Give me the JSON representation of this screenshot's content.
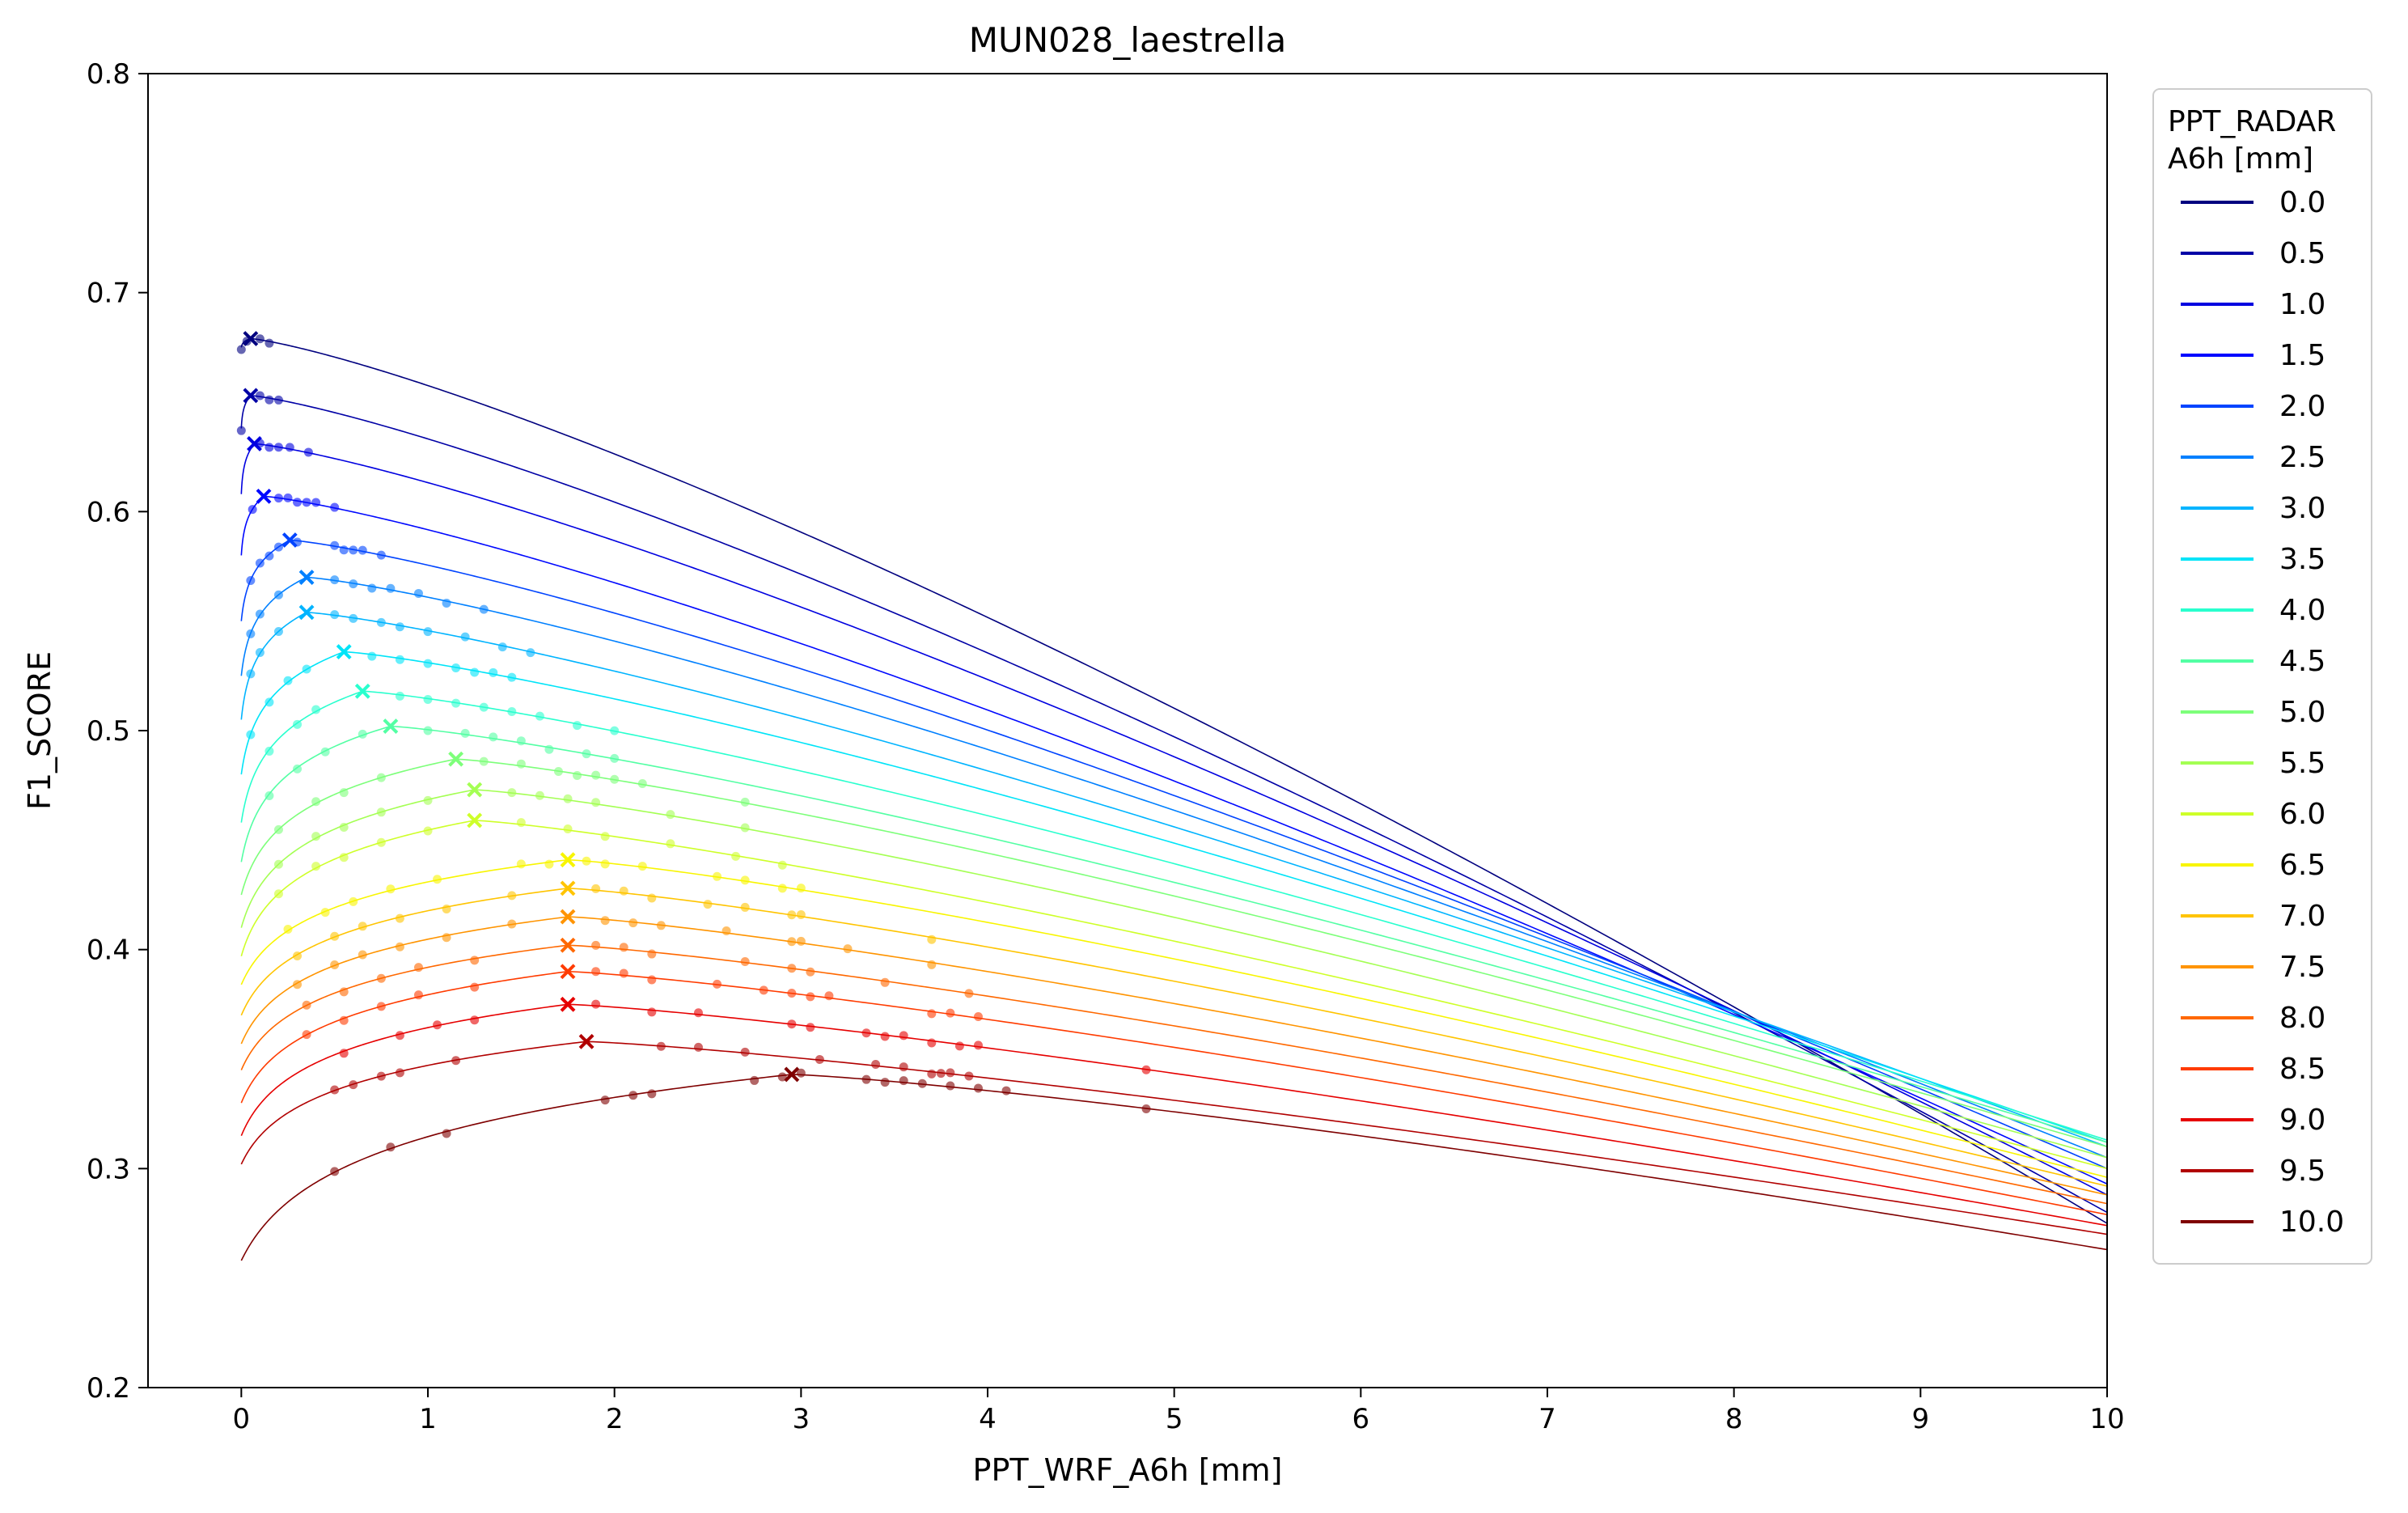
{
  "chart_data": {
    "type": "line",
    "title": "MUN028_laestrella",
    "xlabel": "PPT_WRF_A6h [mm]",
    "ylabel": "F1_SCORE",
    "xlim": [
      -0.5,
      10
    ],
    "ylim": [
      0.2,
      0.8
    ],
    "xticks": [
      0,
      1,
      2,
      3,
      4,
      5,
      6,
      7,
      8,
      9,
      10
    ],
    "yticks": [
      0.2,
      0.3,
      0.4,
      0.5,
      0.6,
      0.7,
      0.8
    ],
    "grid": false,
    "legend": {
      "title_line1": "PPT_RADAR",
      "title_line2": "A6h [mm]",
      "placement": "outside-right"
    },
    "series": [
      {
        "name": "0.0",
        "color": "#00007f",
        "start_y": 0.675,
        "peak_x": 0.05,
        "peak_y": 0.679,
        "end_y": 0.275,
        "marker_x": [
          0.0,
          0.03,
          0.1,
          0.15
        ]
      },
      {
        "name": "0.5",
        "color": "#0000a6",
        "start_y": 0.638,
        "peak_x": 0.05,
        "peak_y": 0.653,
        "end_y": 0.28,
        "marker_x": [
          0.0,
          0.1,
          0.15,
          0.2
        ]
      },
      {
        "name": "1.0",
        "color": "#0000e0",
        "start_y": 0.608,
        "peak_x": 0.07,
        "peak_y": 0.631,
        "end_y": 0.288,
        "marker_x": [
          0.1,
          0.15,
          0.2,
          0.26,
          0.36
        ]
      },
      {
        "name": "1.5",
        "color": "#0008ff",
        "start_y": 0.58,
        "peak_x": 0.12,
        "peak_y": 0.607,
        "end_y": 0.293,
        "marker_x": [
          0.06,
          0.2,
          0.25,
          0.3,
          0.35,
          0.4,
          0.5
        ]
      },
      {
        "name": "2.0",
        "color": "#0044ff",
        "start_y": 0.55,
        "peak_x": 0.26,
        "peak_y": 0.587,
        "end_y": 0.3,
        "marker_x": [
          0.05,
          0.1,
          0.15,
          0.2,
          0.3,
          0.5,
          0.55,
          0.6,
          0.65,
          0.75
        ]
      },
      {
        "name": "2.5",
        "color": "#0080ff",
        "start_y": 0.525,
        "peak_x": 0.35,
        "peak_y": 0.57,
        "end_y": 0.305,
        "marker_x": [
          0.05,
          0.1,
          0.2,
          0.5,
          0.6,
          0.7,
          0.8,
          0.95,
          1.1,
          1.3
        ]
      },
      {
        "name": "3.0",
        "color": "#00b4ff",
        "start_y": 0.505,
        "peak_x": 0.35,
        "peak_y": 0.554,
        "end_y": 0.31,
        "marker_x": [
          0.05,
          0.1,
          0.2,
          0.5,
          0.6,
          0.75,
          0.85,
          1.0,
          1.2,
          1.4,
          1.55
        ]
      },
      {
        "name": "3.5",
        "color": "#00e4f8",
        "start_y": 0.48,
        "peak_x": 0.55,
        "peak_y": 0.536,
        "end_y": 0.312,
        "marker_x": [
          0.05,
          0.15,
          0.25,
          0.35,
          0.7,
          0.85,
          1.0,
          1.15,
          1.25,
          1.35,
          1.45
        ]
      },
      {
        "name": "4.0",
        "color": "#29ffce",
        "start_y": 0.458,
        "peak_x": 0.65,
        "peak_y": 0.518,
        "end_y": 0.313,
        "marker_x": [
          0.15,
          0.3,
          0.4,
          0.85,
          1.0,
          1.15,
          1.3,
          1.45,
          1.6,
          1.8,
          2.0
        ]
      },
      {
        "name": "4.5",
        "color": "#53ffa4",
        "start_y": 0.44,
        "peak_x": 0.8,
        "peak_y": 0.502,
        "end_y": 0.312,
        "marker_x": [
          0.15,
          0.3,
          0.45,
          0.65,
          1.0,
          1.2,
          1.35,
          1.5,
          1.65,
          1.85,
          2.0
        ]
      },
      {
        "name": "5.0",
        "color": "#7dff7a",
        "start_y": 0.425,
        "peak_x": 1.15,
        "peak_y": 0.487,
        "end_y": 0.31,
        "marker_x": [
          0.2,
          0.4,
          0.55,
          0.75,
          1.3,
          1.5,
          1.7,
          1.8,
          1.9,
          2.0,
          2.15,
          2.7
        ]
      },
      {
        "name": "5.5",
        "color": "#a4ff53",
        "start_y": 0.41,
        "peak_x": 1.25,
        "peak_y": 0.473,
        "end_y": 0.305,
        "marker_x": [
          0.2,
          0.4,
          0.55,
          0.75,
          1.0,
          1.45,
          1.6,
          1.75,
          1.9,
          2.3,
          2.7
        ]
      },
      {
        "name": "6.0",
        "color": "#ceff29",
        "start_y": 0.397,
        "peak_x": 1.25,
        "peak_y": 0.459,
        "end_y": 0.3,
        "marker_x": [
          0.2,
          0.4,
          0.55,
          0.75,
          1.0,
          1.5,
          1.75,
          1.95,
          2.3,
          2.65,
          2.9
        ]
      },
      {
        "name": "6.5",
        "color": "#f8f500",
        "start_y": 0.384,
        "peak_x": 1.75,
        "peak_y": 0.441,
        "end_y": 0.296,
        "marker_x": [
          0.25,
          0.45,
          0.6,
          0.8,
          1.05,
          1.5,
          1.65,
          1.85,
          1.95,
          2.15,
          2.55,
          2.7,
          2.9,
          3.0
        ]
      },
      {
        "name": "7.0",
        "color": "#ffc400",
        "start_y": 0.37,
        "peak_x": 1.75,
        "peak_y": 0.428,
        "end_y": 0.292,
        "marker_x": [
          0.3,
          0.5,
          0.65,
          0.85,
          1.1,
          1.45,
          1.9,
          2.05,
          2.2,
          2.5,
          2.7,
          2.95,
          3.0,
          3.7
        ]
      },
      {
        "name": "7.5",
        "color": "#ff9400",
        "start_y": 0.357,
        "peak_x": 1.75,
        "peak_y": 0.415,
        "end_y": 0.288,
        "marker_x": [
          0.3,
          0.5,
          0.65,
          0.85,
          1.1,
          1.45,
          1.95,
          2.1,
          2.25,
          2.6,
          2.95,
          3.0,
          3.25,
          3.7
        ]
      },
      {
        "name": "8.0",
        "color": "#ff6800",
        "start_y": 0.345,
        "peak_x": 1.75,
        "peak_y": 0.402,
        "end_y": 0.284,
        "marker_x": [
          0.35,
          0.55,
          0.75,
          0.95,
          1.25,
          1.9,
          2.05,
          2.2,
          2.7,
          2.95,
          3.05,
          3.45,
          3.9
        ]
      },
      {
        "name": "8.5",
        "color": "#ff3b00",
        "start_y": 0.33,
        "peak_x": 1.75,
        "peak_y": 0.39,
        "end_y": 0.279,
        "marker_x": [
          0.35,
          0.55,
          0.75,
          0.95,
          1.25,
          1.9,
          2.05,
          2.2,
          2.55,
          2.8,
          2.95,
          3.05,
          3.15,
          3.7,
          3.8,
          3.95
        ]
      },
      {
        "name": "9.0",
        "color": "#e60000",
        "start_y": 0.315,
        "peak_x": 1.75,
        "peak_y": 0.375,
        "end_y": 0.274,
        "marker_x": [
          0.55,
          0.85,
          1.05,
          1.25,
          1.9,
          2.2,
          2.45,
          2.95,
          3.05,
          3.35,
          3.45,
          3.55,
          3.7,
          3.85,
          3.95,
          4.85
        ]
      },
      {
        "name": "9.5",
        "color": "#b10000",
        "start_y": 0.302,
        "peak_x": 1.85,
        "peak_y": 0.358,
        "end_y": 0.27,
        "marker_x": [
          0.5,
          0.6,
          0.75,
          0.85,
          1.15,
          2.25,
          2.45,
          2.7,
          3.1,
          3.4,
          3.55,
          3.7,
          3.75,
          3.8,
          3.9
        ]
      },
      {
        "name": "10.0",
        "color": "#7f0000",
        "start_y": 0.258,
        "peak_x": 2.95,
        "peak_y": 0.343,
        "end_y": 0.263,
        "marker_x": [
          0.5,
          0.8,
          1.1,
          1.95,
          2.1,
          2.2,
          2.75,
          2.9,
          3.0,
          3.35,
          3.45,
          3.55,
          3.65,
          3.8,
          3.95,
          4.1,
          4.85
        ]
      }
    ]
  }
}
